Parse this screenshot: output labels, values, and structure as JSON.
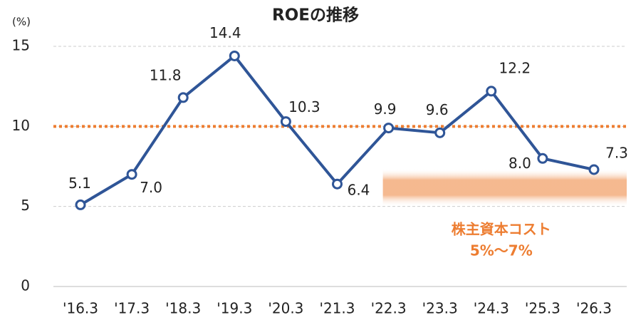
{
  "chart_data": {
    "type": "line",
    "title": "ROEの推移",
    "y_label": "(%)",
    "categories": [
      "'16.3",
      "'17.3",
      "'18.3",
      "'19.3",
      "'20.3",
      "'21.3",
      "'22.3",
      "'23.3",
      "'24.3",
      "'25.3",
      "'26.3"
    ],
    "values": [
      5.1,
      7.0,
      11.8,
      14.4,
      10.3,
      6.4,
      9.9,
      9.6,
      12.2,
      8.0,
      7.3
    ],
    "value_labels": [
      "5.1",
      "7.0",
      "11.8",
      "14.4",
      "10.3",
      "6.4",
      "9.9",
      "9.6",
      "12.2",
      "8.0",
      "7.3"
    ],
    "color": "#2f5597",
    "ylim": [
      0,
      15
    ],
    "yticks": [
      0,
      5,
      10,
      15
    ],
    "grid": true,
    "reference_line": {
      "value": 10,
      "color": "#ed7d31"
    },
    "band": {
      "range": [
        5,
        7
      ],
      "color": "#f4b183",
      "label": "株主資本コスト",
      "sublabel": "5%～7%"
    }
  }
}
